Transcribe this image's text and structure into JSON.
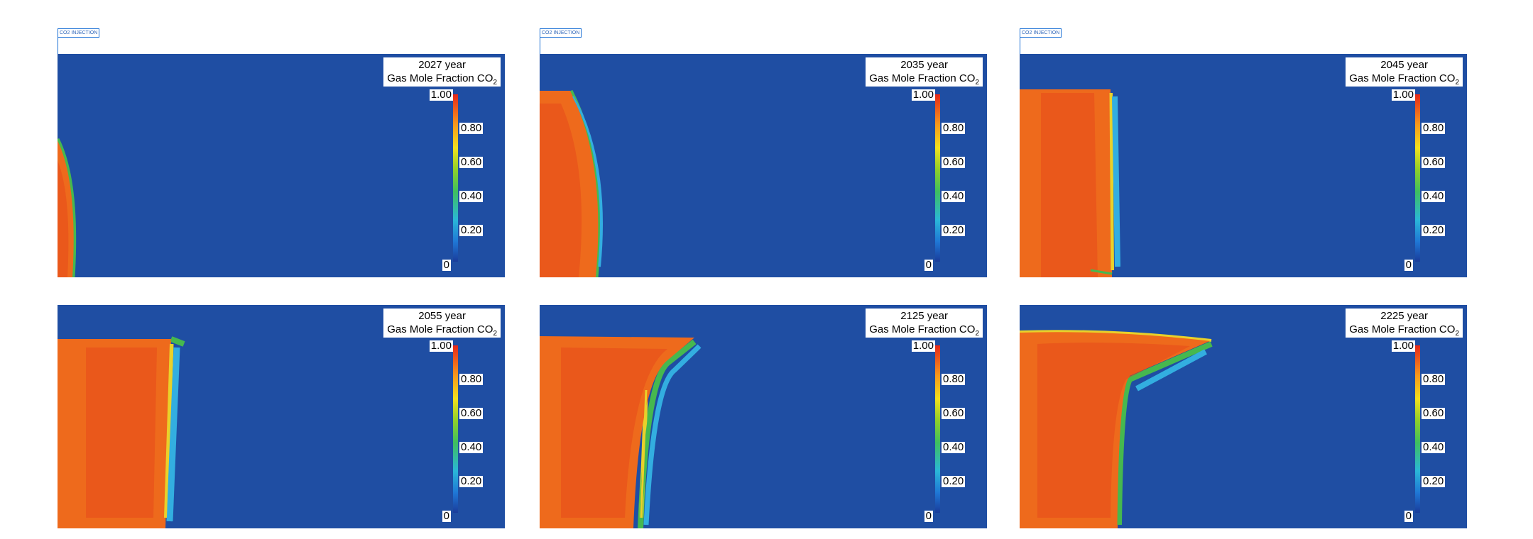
{
  "figure": {
    "injection_label": "CO2 INJECTION",
    "property": {
      "prefix": "Gas Mole Fraction CO",
      "subscript": "2"
    },
    "colorbar": {
      "ticks": [
        "1.00",
        "0.80",
        "0.60",
        "0.40",
        "0.20",
        "0"
      ]
    },
    "colors": {
      "background": "#1f4ea3",
      "plume": "#ee6a1c",
      "plume_core": "#e4421b",
      "front_green": "#46b84f",
      "front_cyan": "#33aee0",
      "front_yellow": "#e9d12a"
    },
    "panels": [
      {
        "year_label": "2027 year",
        "show_injection_label": true
      },
      {
        "year_label": "2035 year",
        "show_injection_label": true
      },
      {
        "year_label": "2045 year",
        "show_injection_label": true
      },
      {
        "year_label": "2055 year",
        "show_injection_label": false
      },
      {
        "year_label": "2125 year",
        "show_injection_label": false
      },
      {
        "year_label": "2225 year",
        "show_injection_label": false
      }
    ]
  }
}
